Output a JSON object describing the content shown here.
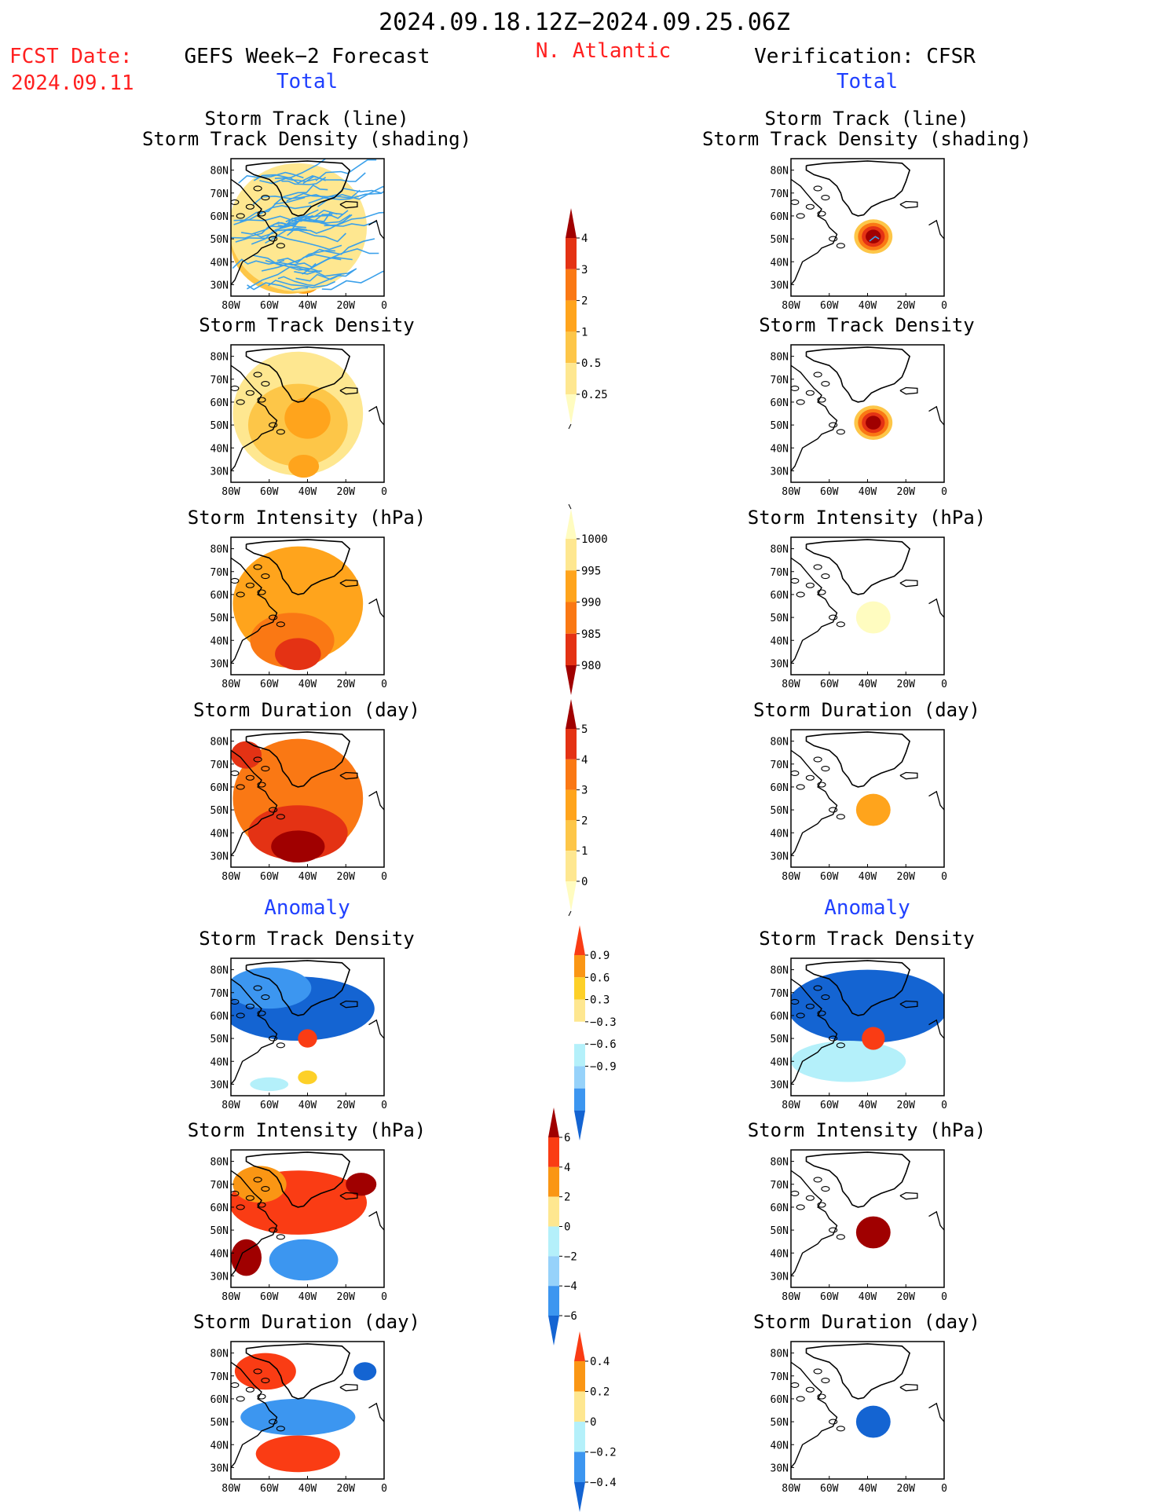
{
  "header": {
    "date_range": "2024.09.18.12Z−2024.09.25.06Z",
    "fcst_label": "FCST Date:",
    "fcst_date": "2024.09.11",
    "region": "N. Atlantic",
    "left_title": "GEFS Week−2 Forecast",
    "right_title": "Verification: CFSR"
  },
  "sections": {
    "total": "Total",
    "anomaly": "Anomaly"
  },
  "colors": {
    "title_black": "#000000",
    "fcst_red": "#ff2020",
    "section_blue": "#2040ff",
    "storm_track_line": "#3aa0ea",
    "coastline": "#000000"
  },
  "map_axes": {
    "x_ticks": [
      "80W",
      "60W",
      "40W",
      "20W",
      "0"
    ],
    "y_ticks": [
      "80N",
      "70N",
      "60N",
      "50N",
      "40N",
      "30N"
    ],
    "lon_range": [
      -80,
      0
    ],
    "lat_range": [
      25,
      85
    ]
  },
  "colorbars": [
    {
      "id": "cb-density-total",
      "labels": [
        "4",
        "3",
        "2",
        "1",
        "0.5",
        "0.25"
      ],
      "colors": [
        "#a00000",
        "#e43214",
        "#fa7814",
        "#ffa41c",
        "#fdc648",
        "#fee790",
        "#fffcc0"
      ]
    },
    {
      "id": "cb-intensity-total",
      "labels": [
        "1000",
        "995",
        "990",
        "985",
        "980"
      ],
      "colors": [
        "#fffcc0",
        "#fee790",
        "#ffa41c",
        "#fa7814",
        "#e43214",
        "#a00000"
      ]
    },
    {
      "id": "cb-duration-total",
      "labels": [
        "5",
        "4",
        "3",
        "2",
        "1",
        "0"
      ],
      "colors": [
        "#a00000",
        "#e43214",
        "#fa7814",
        "#ffa41c",
        "#fdc648",
        "#fee790",
        "#fffcc0"
      ]
    },
    {
      "id": "cb-density-anom",
      "labels": [
        "0.9",
        "0.6",
        "0.3",
        "−0.3",
        "−0.6",
        "−0.9"
      ],
      "colors": [
        "#fa3c14",
        "#fa9614",
        "#fdd028",
        "#fee790",
        "#ffffff",
        "#b4f0fa",
        "#96d2fa",
        "#3c96f0",
        "#1464d2"
      ]
    },
    {
      "id": "cb-intensity-anom",
      "labels": [
        "6",
        "4",
        "2",
        "0",
        "−2",
        "−4",
        "−6"
      ],
      "colors": [
        "#a00000",
        "#fa3c14",
        "#fa9614",
        "#fee790",
        "#b4f0fa",
        "#96d2fa",
        "#3c96f0",
        "#1464d2"
      ]
    },
    {
      "id": "cb-duration-anom",
      "labels": [
        "0.4",
        "0.2",
        "0",
        "−0.2",
        "−0.4"
      ],
      "colors": [
        "#fa3c14",
        "#fa9614",
        "#fee790",
        "#b4f0fa",
        "#3c96f0",
        "#1464d2"
      ]
    }
  ],
  "panels": [
    {
      "id": "p1L",
      "titles": [
        "Storm Track (line)",
        "Storm Track Density (shading)"
      ]
    },
    {
      "id": "p1R",
      "titles": [
        "Storm Track (line)",
        "Storm Track Density (shading)"
      ]
    },
    {
      "id": "p2L",
      "titles": [
        "Storm Track Density"
      ]
    },
    {
      "id": "p2R",
      "titles": [
        "Storm Track Density"
      ]
    },
    {
      "id": "p3L",
      "titles": [
        "Storm Intensity (hPa)"
      ]
    },
    {
      "id": "p3R",
      "titles": [
        "Storm Intensity (hPa)"
      ]
    },
    {
      "id": "p4L",
      "titles": [
        "Storm Duration (day)"
      ]
    },
    {
      "id": "p4R",
      "titles": [
        "Storm Duration (day)"
      ]
    },
    {
      "id": "p5L",
      "titles": [
        "Storm Track Density"
      ]
    },
    {
      "id": "p5R",
      "titles": [
        "Storm Track Density"
      ]
    },
    {
      "id": "p6L",
      "titles": [
        "Storm Intensity (hPa)"
      ]
    },
    {
      "id": "p6R",
      "titles": [
        "Storm Intensity (hPa)"
      ]
    },
    {
      "id": "p7L",
      "titles": [
        "Storm Duration (day)"
      ]
    },
    {
      "id": "p7R",
      "titles": [
        "Storm Duration (day)"
      ]
    }
  ],
  "chart_data": {
    "type": "heatmap",
    "x_unit": "degrees longitude",
    "y_unit": "degrees latitude",
    "fields": [
      {
        "panel": "p1L",
        "colorbar": "cb-density-total",
        "blobs": [
          {
            "lon": -40,
            "lat": 52,
            "rx": 14,
            "ry": 10,
            "color": "#fa7814"
          },
          {
            "lon": -38,
            "lat": 52,
            "rx": 7,
            "ry": 5,
            "color": "#ffa41c"
          },
          {
            "lon": -42,
            "lat": 32,
            "rx": 9,
            "ry": 6,
            "color": "#ffa41c"
          },
          {
            "lon": -50,
            "lat": 48,
            "rx": 30,
            "ry": 22,
            "color": "#fdc648"
          },
          {
            "lon": -45,
            "lat": 55,
            "rx": 36,
            "ry": 28,
            "color": "#fee790"
          }
        ]
      },
      {
        "panel": "p1R",
        "colorbar": "cb-density-total",
        "blobs": [
          {
            "lon": -37,
            "lat": 51,
            "rx": 10,
            "ry": 7.5,
            "color": "#fdc648"
          },
          {
            "lon": -37,
            "lat": 51,
            "rx": 8,
            "ry": 6,
            "color": "#fa7814"
          },
          {
            "lon": -37,
            "lat": 51,
            "rx": 6,
            "ry": 4.5,
            "color": "#e43214"
          },
          {
            "lon": -37,
            "lat": 51,
            "rx": 4,
            "ry": 3,
            "color": "#a00000"
          }
        ]
      },
      {
        "panel": "p2L",
        "colorbar": "cb-density-total",
        "blobs": [
          {
            "lon": -45,
            "lat": 55,
            "rx": 34,
            "ry": 27,
            "color": "#fee790"
          },
          {
            "lon": -45,
            "lat": 50,
            "rx": 26,
            "ry": 18,
            "color": "#fdc648"
          },
          {
            "lon": -40,
            "lat": 53,
            "rx": 12,
            "ry": 9,
            "color": "#ffa41c"
          },
          {
            "lon": -42,
            "lat": 32,
            "rx": 8,
            "ry": 5,
            "color": "#ffa41c"
          }
        ]
      },
      {
        "panel": "p2R",
        "colorbar": "cb-density-total",
        "blobs": [
          {
            "lon": -37,
            "lat": 51,
            "rx": 10,
            "ry": 7.5,
            "color": "#fdc648"
          },
          {
            "lon": -37,
            "lat": 51,
            "rx": 8,
            "ry": 6,
            "color": "#fa7814"
          },
          {
            "lon": -37,
            "lat": 51,
            "rx": 6,
            "ry": 4.5,
            "color": "#e43214"
          },
          {
            "lon": -37,
            "lat": 51,
            "rx": 4,
            "ry": 3,
            "color": "#a00000"
          }
        ]
      },
      {
        "panel": "p3L",
        "colorbar": "cb-intensity-total",
        "blobs": [
          {
            "lon": -45,
            "lat": 56,
            "rx": 34,
            "ry": 25,
            "color": "#ffa41c"
          },
          {
            "lon": -48,
            "lat": 40,
            "rx": 22,
            "ry": 12,
            "color": "#fa7814"
          },
          {
            "lon": -45,
            "lat": 34,
            "rx": 12,
            "ry": 7,
            "color": "#e43214"
          }
        ]
      },
      {
        "panel": "p3R",
        "colorbar": "cb-intensity-total",
        "blobs": [
          {
            "lon": -37,
            "lat": 50,
            "rx": 9,
            "ry": 7,
            "color": "#fffcc0"
          }
        ]
      },
      {
        "panel": "p4L",
        "colorbar": "cb-duration-total",
        "blobs": [
          {
            "lon": -45,
            "lat": 55,
            "rx": 34,
            "ry": 26,
            "color": "#fa7814"
          },
          {
            "lon": -45,
            "lat": 40,
            "rx": 26,
            "ry": 12,
            "color": "#e43214"
          },
          {
            "lon": -45,
            "lat": 34,
            "rx": 14,
            "ry": 7,
            "color": "#a00000"
          },
          {
            "lon": -72,
            "lat": 74,
            "rx": 8,
            "ry": 6,
            "color": "#e43214"
          }
        ]
      },
      {
        "panel": "p4R",
        "colorbar": "cb-duration-total",
        "blobs": [
          {
            "lon": -37,
            "lat": 50,
            "rx": 9,
            "ry": 7,
            "color": "#ffa41c"
          }
        ]
      },
      {
        "panel": "p5L",
        "colorbar": "cb-density-anom",
        "blobs": [
          {
            "lon": -45,
            "lat": 63,
            "rx": 40,
            "ry": 14,
            "color": "#1464d2"
          },
          {
            "lon": -60,
            "lat": 72,
            "rx": 22,
            "ry": 9,
            "color": "#3c96f0"
          },
          {
            "lon": -40,
            "lat": 50,
            "rx": 5,
            "ry": 4,
            "color": "#fa3c14"
          },
          {
            "lon": -40,
            "lat": 33,
            "rx": 5,
            "ry": 3,
            "color": "#fdd028"
          },
          {
            "lon": -60,
            "lat": 30,
            "rx": 10,
            "ry": 3,
            "color": "#b4f0fa"
          }
        ]
      },
      {
        "panel": "p5R",
        "colorbar": "cb-density-anom",
        "blobs": [
          {
            "lon": -40,
            "lat": 64,
            "rx": 42,
            "ry": 16,
            "color": "#1464d2"
          },
          {
            "lon": -50,
            "lat": 40,
            "rx": 30,
            "ry": 9,
            "color": "#b4f0fa"
          },
          {
            "lon": -37,
            "lat": 50,
            "rx": 6,
            "ry": 5,
            "color": "#fa3c14"
          }
        ]
      },
      {
        "panel": "p6L",
        "colorbar": "cb-intensity-anom",
        "blobs": [
          {
            "lon": -45,
            "lat": 62,
            "rx": 36,
            "ry": 14,
            "color": "#fa3c14"
          },
          {
            "lon": -12,
            "lat": 70,
            "rx": 8,
            "ry": 5,
            "color": "#a00000"
          },
          {
            "lon": -42,
            "lat": 37,
            "rx": 18,
            "ry": 9,
            "color": "#3c96f0"
          },
          {
            "lon": -72,
            "lat": 38,
            "rx": 8,
            "ry": 8,
            "color": "#a00000"
          },
          {
            "lon": -65,
            "lat": 70,
            "rx": 14,
            "ry": 8,
            "color": "#fa9614"
          }
        ]
      },
      {
        "panel": "p6R",
        "colorbar": "cb-intensity-anom",
        "blobs": [
          {
            "lon": -37,
            "lat": 49,
            "rx": 9,
            "ry": 7,
            "color": "#a00000"
          }
        ]
      },
      {
        "panel": "p7L",
        "colorbar": "cb-duration-anom",
        "blobs": [
          {
            "lon": -62,
            "lat": 72,
            "rx": 16,
            "ry": 8,
            "color": "#fa3c14"
          },
          {
            "lon": -45,
            "lat": 52,
            "rx": 30,
            "ry": 8,
            "color": "#3c96f0"
          },
          {
            "lon": -45,
            "lat": 36,
            "rx": 22,
            "ry": 8,
            "color": "#fa3c14"
          },
          {
            "lon": -10,
            "lat": 72,
            "rx": 6,
            "ry": 4,
            "color": "#1464d2"
          }
        ]
      },
      {
        "panel": "p7R",
        "colorbar": "cb-duration-anom",
        "blobs": [
          {
            "lon": -37,
            "lat": 50,
            "rx": 9,
            "ry": 7,
            "color": "#1464d2"
          }
        ]
      }
    ]
  }
}
